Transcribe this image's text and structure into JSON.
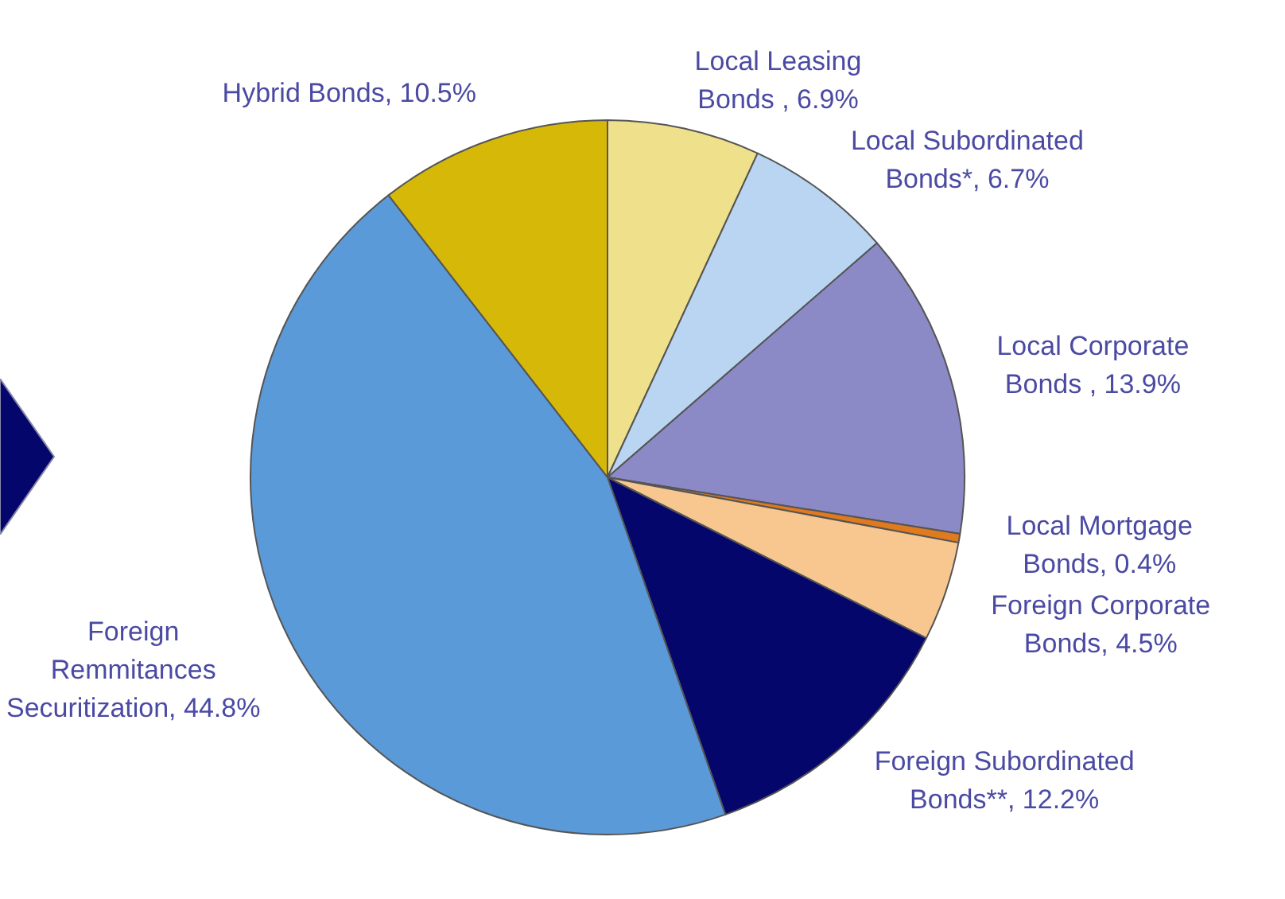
{
  "chart_data": {
    "type": "pie",
    "categories": [
      "Local Leasing Bonds ",
      "Local Subordinated Bonds*",
      "Local Corporate Bonds ",
      "Local Mortgage Bonds",
      "Foreign Corporate Bonds",
      "Foreign Subordinated Bonds**",
      "Foreign Remmitances Securitization",
      "Hybrid Bonds"
    ],
    "value_labels": [
      "6.9%",
      "6.7%",
      "13.9%",
      "0.4%",
      "4.5%",
      "12.2%",
      "44.8%",
      "10.5%"
    ],
    "values": [
      6.9,
      6.7,
      13.9,
      0.4,
      4.5,
      12.2,
      44.8,
      10.5
    ],
    "colors": [
      "#efe08c",
      "#b9d5f2",
      "#8b8ac6",
      "#e07a1e",
      "#f7c78f",
      "#05066b",
      "#5b9ad8",
      "#d6b908"
    ],
    "data_labels": true,
    "legend": false
  }
}
